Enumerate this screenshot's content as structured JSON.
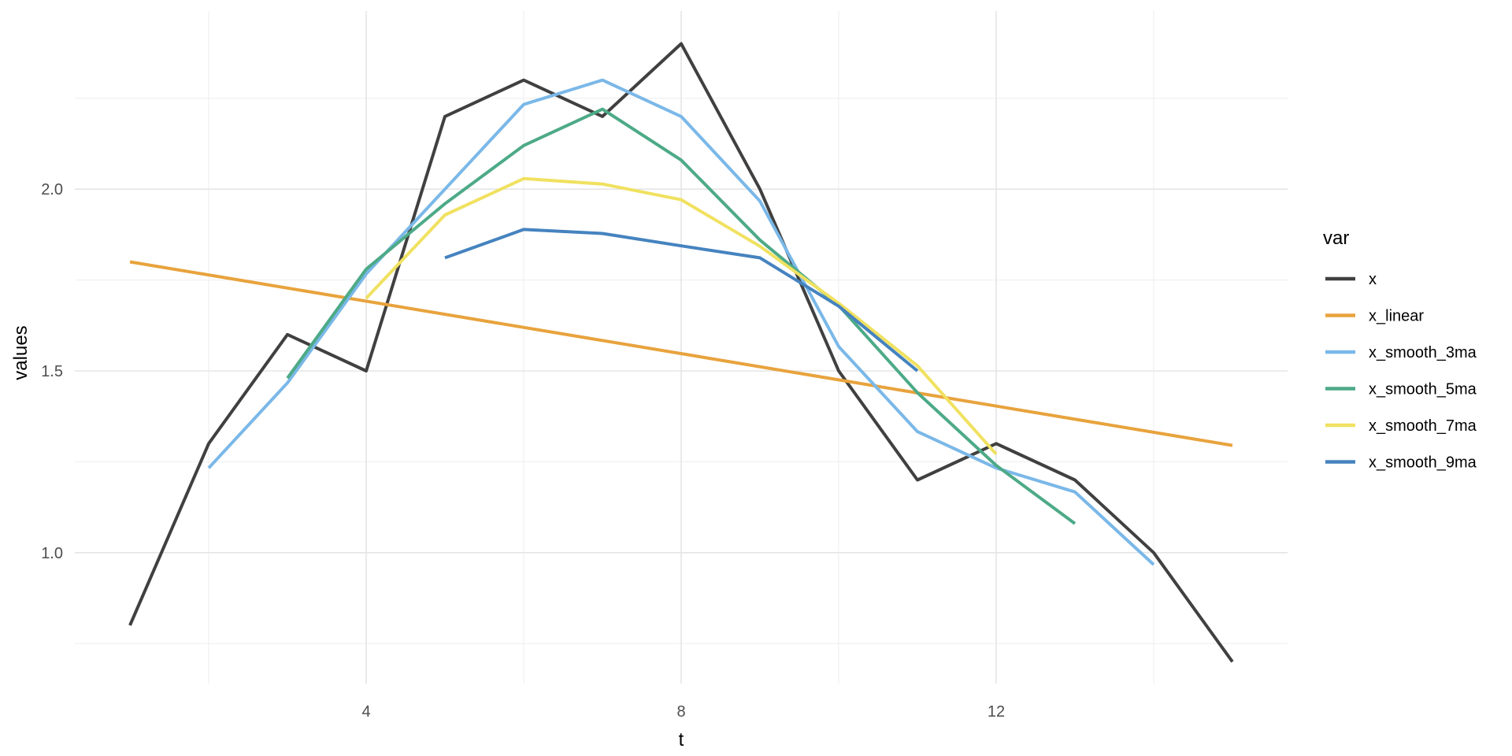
{
  "chart_data": {
    "type": "line",
    "title": "",
    "xlabel": "t",
    "ylabel": "values",
    "xlim": [
      0.3,
      15.7
    ],
    "ylim": [
      0.64,
      2.49
    ],
    "x_ticks": [
      4,
      8,
      12
    ],
    "x_tick_labels": [
      "4",
      "8",
      "12"
    ],
    "x_minor_ticks": [
      2,
      6,
      10,
      14
    ],
    "y_ticks": [
      1.0,
      1.5,
      2.0
    ],
    "y_tick_labels": [
      "1.0",
      "1.5",
      "2.0"
    ],
    "y_minor_ticks": [
      0.75,
      1.25,
      1.75,
      2.25
    ],
    "grid": true,
    "legend": {
      "title": "var",
      "position": "right"
    },
    "series": [
      {
        "name": "x",
        "color": "#404040",
        "x": [
          1,
          2,
          3,
          4,
          5,
          6,
          7,
          8,
          9,
          10,
          11,
          12,
          13,
          14,
          15
        ],
        "y": [
          0.8,
          1.3,
          1.6,
          1.5,
          2.2,
          2.3,
          2.2,
          2.4,
          2.0,
          1.5,
          1.2,
          1.3,
          1.2,
          1.0,
          0.7
        ]
      },
      {
        "name": "x_linear",
        "color": "#E8A33D",
        "x": [
          1,
          15
        ],
        "y": [
          1.8,
          1.295
        ]
      },
      {
        "name": "x_smooth_3ma",
        "color": "#7AB8E8",
        "x": [
          2,
          3,
          4,
          5,
          6,
          7,
          8,
          9,
          10,
          11,
          12,
          13,
          14
        ],
        "y": [
          1.233,
          1.467,
          1.767,
          2.0,
          2.233,
          2.3,
          2.2,
          1.967,
          1.567,
          1.333,
          1.233,
          1.167,
          0.967
        ]
      },
      {
        "name": "x_smooth_5ma",
        "color": "#4DAA87",
        "x": [
          3,
          4,
          5,
          6,
          7,
          8,
          9,
          10,
          11,
          12,
          13
        ],
        "y": [
          1.48,
          1.78,
          1.96,
          2.12,
          2.22,
          2.08,
          1.86,
          1.68,
          1.44,
          1.24,
          1.08
        ]
      },
      {
        "name": "x_smooth_7ma",
        "color": "#F0E160",
        "x": [
          4,
          5,
          6,
          7,
          8,
          9,
          10,
          11,
          12
        ],
        "y": [
          1.7,
          1.929,
          2.029,
          2.014,
          1.971,
          1.843,
          1.686,
          1.514,
          1.271
        ]
      },
      {
        "name": "x_smooth_9ma",
        "color": "#4583BF",
        "x": [
          5,
          6,
          7,
          8,
          9,
          10,
          11
        ],
        "y": [
          1.811,
          1.889,
          1.878,
          1.844,
          1.811,
          1.678,
          1.5
        ]
      }
    ]
  }
}
